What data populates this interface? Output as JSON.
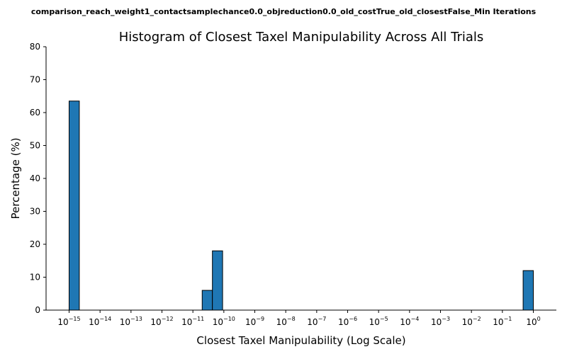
{
  "figure": {
    "suptitle": "comparison_reach_weight1_contactsamplechance0.0_objreduction0.0_old_costTrue_old_closestFalse_Min Iterations"
  },
  "chart_data": {
    "type": "bar",
    "title": "Histogram of Closest Taxel Manipulability Across All Trials",
    "xlabel": "Closest Taxel Manipulability (Log Scale)",
    "ylabel": "Percentage (%)",
    "x_scale": "log",
    "x_tick_exponents": [
      -15,
      -14,
      -13,
      -12,
      -11,
      -10,
      -9,
      -8,
      -7,
      -6,
      -5,
      -4,
      -3,
      -2,
      -1,
      0
    ],
    "y_ticks": [
      0,
      10,
      20,
      30,
      40,
      50,
      60,
      70,
      80
    ],
    "ylim": [
      0,
      80
    ],
    "bar_color": "#1f77b4",
    "series": [
      {
        "bins": [
          {
            "from_exp": -15.0,
            "to_exp": -14.67,
            "value": 63.5
          },
          {
            "from_exp": -10.7,
            "to_exp": -10.37,
            "value": 6.0
          },
          {
            "from_exp": -10.37,
            "to_exp": -10.04,
            "value": 18.0
          },
          {
            "from_exp": -0.33,
            "to_exp": 0.0,
            "value": 12.0
          }
        ]
      }
    ]
  }
}
